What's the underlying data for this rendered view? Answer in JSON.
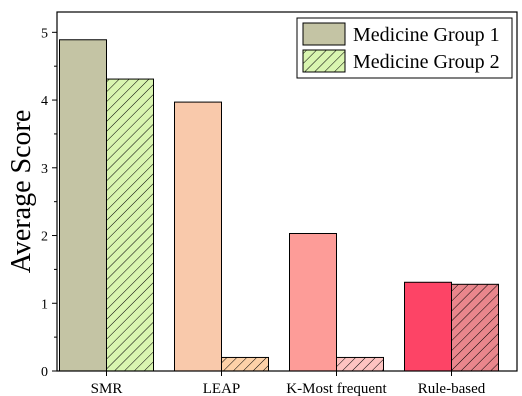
{
  "chart_data": {
    "type": "bar",
    "title": "",
    "xlabel": "",
    "ylabel": "Average Score",
    "ylim": [
      0,
      5.3
    ],
    "yticks": [
      0,
      1,
      2,
      3,
      4,
      5
    ],
    "grid": false,
    "legend_position": "top-right",
    "categories": [
      "SMR",
      "LEAP",
      "K-Most frequent",
      "Rule-based"
    ],
    "series": [
      {
        "name": "Medicine Group 1",
        "values": [
          4.89,
          3.97,
          2.03,
          1.31
        ],
        "colors": [
          "#c4c4a4",
          "#f9c9ab",
          "#fd9c98",
          "#fd4466"
        ],
        "legend_color": "#c4c4a4",
        "pattern": "solid"
      },
      {
        "name": "Medicine Group 2",
        "values": [
          4.31,
          0.2,
          0.2,
          1.28
        ],
        "colors": [
          "#d9f5b0",
          "#fdd1a8",
          "#fdc3c1",
          "#e9868c"
        ],
        "legend_color": "#d9f5b0",
        "pattern": "hatched"
      }
    ]
  }
}
